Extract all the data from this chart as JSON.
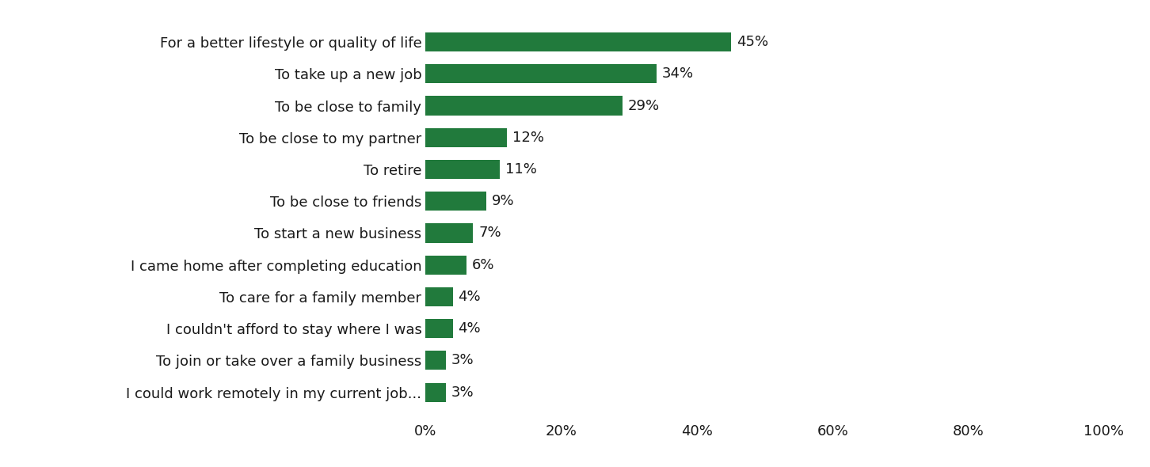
{
  "categories": [
    "I could work remotely in my current job...",
    "To join or take over a family business",
    "I couldn't afford to stay where I was",
    "To care for a family member",
    "I came home after completing education",
    "To start a new business",
    "To be close to friends",
    "To retire",
    "To be close to my partner",
    "To be close to family",
    "To take up a new job",
    "For a better lifestyle or quality of life"
  ],
  "values": [
    3,
    3,
    4,
    4,
    6,
    7,
    9,
    11,
    12,
    29,
    34,
    45
  ],
  "bar_color": "#217a3c",
  "label_color": "#1a1a1a",
  "background_color": "#ffffff",
  "xlim": [
    0,
    100
  ],
  "xticks": [
    0,
    20,
    40,
    60,
    80,
    100
  ],
  "fontsize_labels": 13,
  "fontsize_values": 13,
  "fontsize_ticks": 13,
  "bar_height": 0.6
}
